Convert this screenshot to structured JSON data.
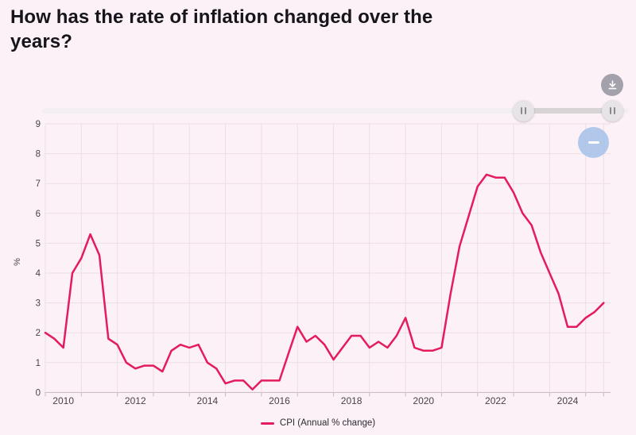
{
  "header": {
    "title": "How has the rate of inflation changed over the years?"
  },
  "controls": {
    "download_button": {
      "icon": "download-icon"
    },
    "zoom_out_button": {
      "icon": "minus-icon"
    },
    "slider": {
      "handle_glyph": "||",
      "selected_start_pct": 82.0,
      "selected_end_pct": 97.2
    }
  },
  "chart_data": {
    "type": "line",
    "title": "How has the rate of inflation changed over the years?",
    "xlabel": "",
    "ylabel": "%",
    "ylim": [
      0,
      9
    ],
    "y_ticks": [
      0,
      1,
      2,
      3,
      4,
      5,
      6,
      7,
      8,
      9
    ],
    "x_domain": [
      2010,
      2025.5
    ],
    "x_tick_labels": [
      "2010",
      "2012",
      "2014",
      "2016",
      "2018",
      "2020",
      "2022",
      "2024"
    ],
    "frequency": "quarterly",
    "x_start": "2010 Q1",
    "x_end": "2025 Q3",
    "grid": "on",
    "legend_position": "bottom",
    "series": [
      {
        "name": "CPI (Annual % change)",
        "color": "#e41b5d",
        "values": [
          2.0,
          1.8,
          1.5,
          4.0,
          4.5,
          5.3,
          4.6,
          1.8,
          1.6,
          1.0,
          0.8,
          0.9,
          0.9,
          0.7,
          1.4,
          1.6,
          1.5,
          1.6,
          1.0,
          0.8,
          0.3,
          0.4,
          0.4,
          0.1,
          0.4,
          0.4,
          0.4,
          1.3,
          2.2,
          1.7,
          1.9,
          1.6,
          1.1,
          1.5,
          1.9,
          1.9,
          1.5,
          1.7,
          1.5,
          1.9,
          2.5,
          1.5,
          1.4,
          1.4,
          1.5,
          3.3,
          4.9,
          5.9,
          6.9,
          7.3,
          7.2,
          7.2,
          6.7,
          6.0,
          5.6,
          4.7,
          4.0,
          3.3,
          2.2,
          2.2,
          2.5,
          2.7,
          3.0
        ]
      }
    ]
  }
}
